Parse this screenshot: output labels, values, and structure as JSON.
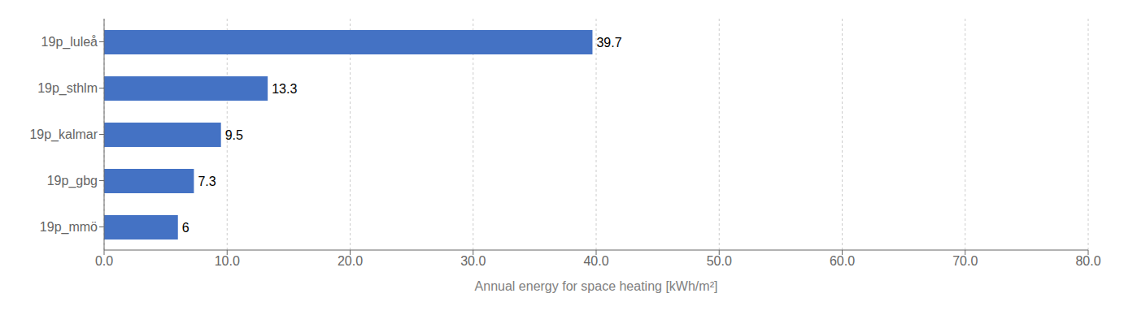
{
  "chart_data": {
    "type": "bar",
    "orientation": "horizontal",
    "categories": [
      "19p_luleå",
      "19p_sthlm",
      "19p_kalmar",
      "19p_gbg",
      "19p_mmö"
    ],
    "values": [
      39.7,
      13.3,
      9.5,
      7.3,
      6.0
    ],
    "color": "#4472C4",
    "xlabel": "Annual energy for space heating [kWh/m²]",
    "xlim": [
      0,
      80
    ],
    "xticks": [
      {
        "value": 0,
        "label": "0.0"
      },
      {
        "value": 10,
        "label": "10.0"
      },
      {
        "value": 20,
        "label": "20.0"
      },
      {
        "value": 30,
        "label": "30.0"
      },
      {
        "value": 40,
        "label": "40.0"
      },
      {
        "value": 50,
        "label": "50.0"
      },
      {
        "value": 60,
        "label": "60.0"
      },
      {
        "value": 70,
        "label": "70.0"
      },
      {
        "value": 80,
        "label": "80.0"
      }
    ],
    "grid": true,
    "data_labels": true
  }
}
